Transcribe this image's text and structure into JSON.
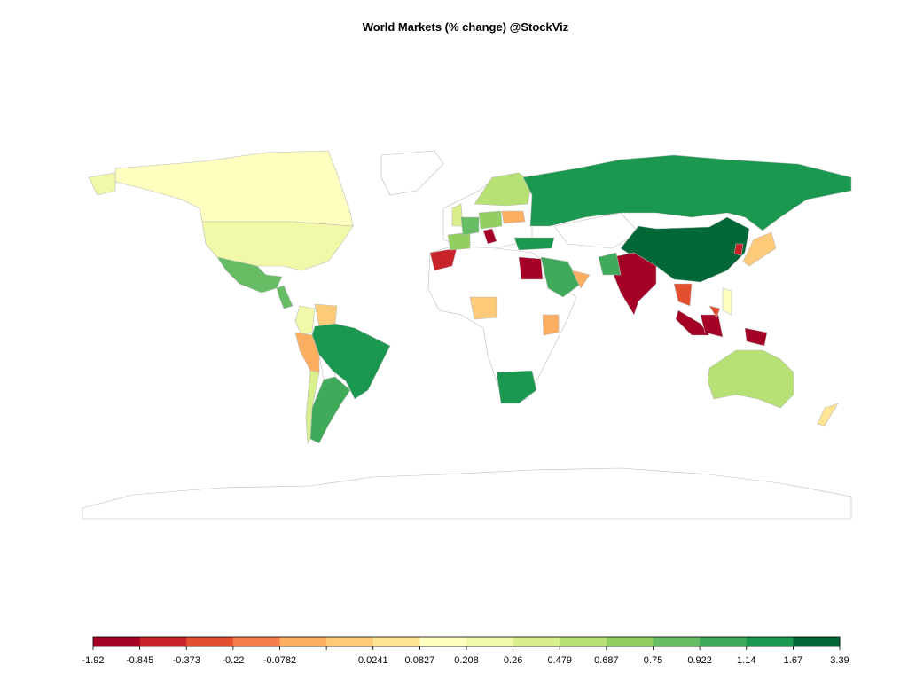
{
  "chart_data": {
    "type": "choropleth",
    "title": "World Markets (% change) @StockViz",
    "legend": {
      "breaks": [
        -1.92,
        -0.845,
        -0.373,
        -0.22,
        -0.0782,
        null,
        0.0241,
        0.0827,
        0.208,
        0.26,
        0.479,
        0.687,
        0.75,
        0.922,
        1.14,
        1.67,
        3.39
      ],
      "colors": [
        "#a50026",
        "#c8232a",
        "#e4502f",
        "#f67c4a",
        "#fdae61",
        "#fdca79",
        "#fee593",
        "#ffffbf",
        "#f1f9a9",
        "#d9ef8b",
        "#b7e075",
        "#91cf60",
        "#66bd63",
        "#3faa59",
        "#1a9850",
        "#006837"
      ]
    },
    "regions": [
      {
        "bin": 7
      },
      {
        "bin": 8
      },
      {
        "bin": 8
      },
      {
        "bin": 12
      },
      {
        "bin": 12
      },
      {
        "bin": 8
      },
      {
        "bin": 5
      },
      {
        "bin": 4
      },
      {
        "bin": 14
      },
      {
        "bin": 13
      },
      {
        "bin": 9
      },
      {
        "bin": 1
      },
      {
        "bin": 0
      },
      {
        "bin": 5
      },
      {
        "bin": 4
      },
      {
        "bin": 14
      },
      {
        "bin": 10
      },
      {
        "bin": 9
      },
      {
        "bin": 11
      },
      {
        "bin": 12
      },
      {
        "bin": 11
      },
      {
        "bin": 4
      },
      {
        "bin": 0
      },
      {
        "bin": 14
      },
      {
        "bin": 14
      },
      {
        "bin": 15
      },
      {
        "bin": 0
      },
      {
        "bin": 13
      },
      {
        "bin": 13
      },
      {
        "bin": 4
      },
      {
        "bin": 5
      },
      {
        "bin": 1
      },
      {
        "bin": 2
      },
      {
        "bin": 7
      },
      {
        "bin": 0
      },
      {
        "bin": 0
      },
      {
        "bin": 0
      },
      {
        "bin": 2
      },
      {
        "bin": 10
      },
      {
        "bin": 6
      }
    ]
  }
}
